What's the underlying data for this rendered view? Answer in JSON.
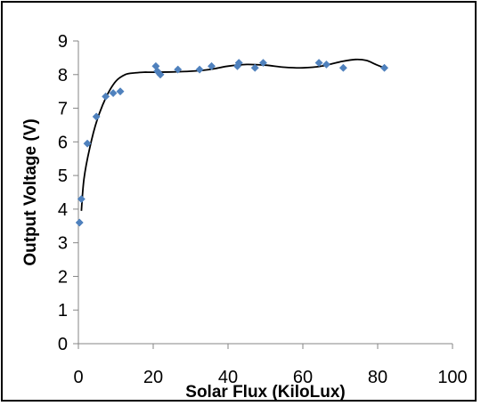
{
  "chart_data": {
    "type": "scatter",
    "title": "",
    "xlabel": "Solar Flux (KiloLux)",
    "ylabel": "Output Voltage (V)",
    "xlim": [
      0,
      100
    ],
    "ylim": [
      0,
      9
    ],
    "x_ticks": [
      "0",
      "20",
      "40",
      "60",
      "80",
      "100"
    ],
    "y_ticks": [
      "0",
      "1",
      "2",
      "3",
      "4",
      "5",
      "6",
      "7",
      "8",
      "9"
    ],
    "grid": false,
    "legend": "none",
    "marker_color": "#4F81BD",
    "trendline_color": "#000000",
    "series": [
      {
        "x": [
          0.3,
          0.8,
          2.4,
          4.8,
          7.3,
          9.3,
          11.2,
          20.7,
          21.1,
          21.9,
          26.6,
          32.4,
          35.6,
          42.5,
          42.9,
          47.2,
          49.4,
          64.3,
          66.3,
          70.8,
          81.8
        ],
        "y": [
          3.6,
          4.3,
          5.95,
          6.75,
          7.35,
          7.45,
          7.5,
          8.25,
          8.1,
          8.0,
          8.15,
          8.15,
          8.25,
          8.25,
          8.35,
          8.2,
          8.35,
          8.35,
          8.3,
          8.2,
          8.2
        ]
      }
    ],
    "trendline": {
      "type": "polynomial",
      "x": [
        0.8,
        1.5,
        3,
        5,
        7.5,
        10,
        12.5,
        15,
        17.5,
        20,
        25,
        30,
        35,
        40,
        45,
        50,
        55,
        60,
        65,
        70,
        74,
        77,
        79.5,
        81.8
      ],
      "y": [
        3.95,
        4.9,
        5.8,
        6.65,
        7.35,
        7.8,
        8.0,
        8.05,
        8.07,
        8.07,
        8.08,
        8.1,
        8.15,
        8.25,
        8.3,
        8.28,
        8.22,
        8.2,
        8.25,
        8.38,
        8.45,
        8.42,
        8.3,
        8.2
      ]
    }
  }
}
